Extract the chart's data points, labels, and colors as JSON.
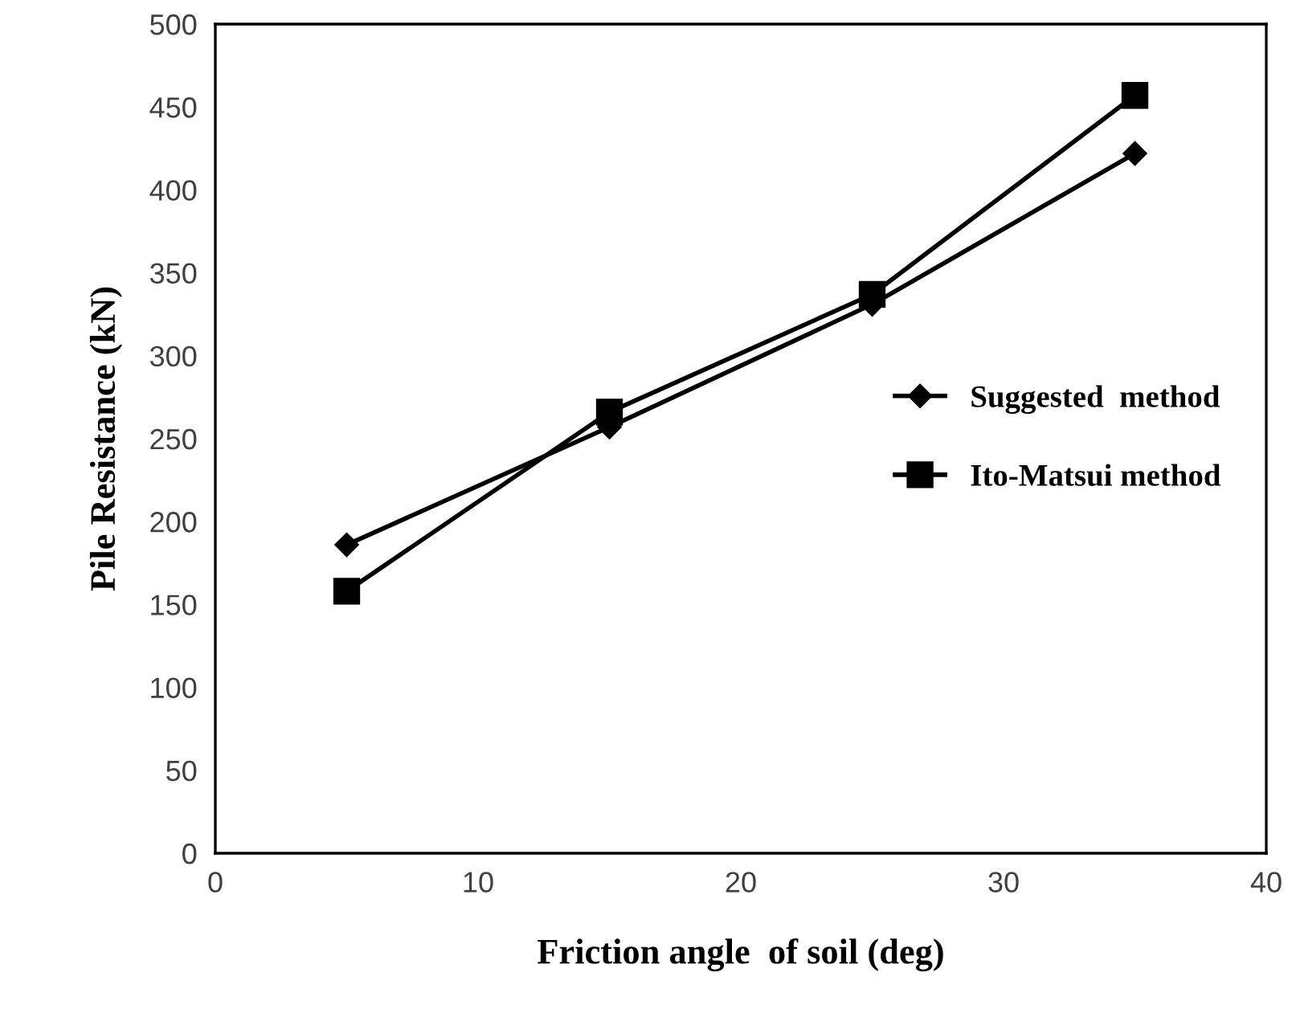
{
  "chart_data": {
    "type": "line",
    "xlabel": "Friction angle  of soil (deg)",
    "ylabel": "Pile Resistance (kN)",
    "x": [
      5,
      15,
      25,
      35
    ],
    "series": [
      {
        "name": "Suggested  method",
        "color": "#000000",
        "marker": "diamond",
        "values": [
          186,
          257,
          331,
          422
        ]
      },
      {
        "name": "Ito-Matsui method",
        "color": "#000000",
        "marker": "square",
        "values": [
          158,
          266,
          337,
          457
        ]
      }
    ],
    "xlim": [
      0,
      40
    ],
    "xticks": [
      0,
      10,
      20,
      30,
      40
    ],
    "ylim": [
      0,
      500
    ],
    "yticks": [
      0,
      50,
      100,
      150,
      200,
      250,
      300,
      350,
      400,
      450,
      500
    ],
    "grid": false,
    "legend": "right",
    "line_style": "solid"
  }
}
